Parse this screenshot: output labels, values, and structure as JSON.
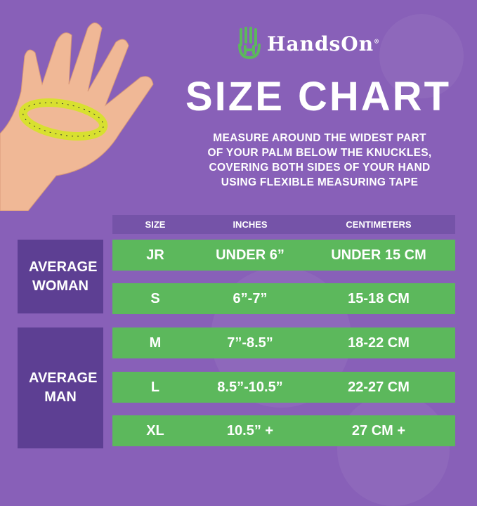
{
  "brand": {
    "name": "HandsOn",
    "registered": "®"
  },
  "title": "SIZE CHART",
  "instructions": [
    "MEASURE AROUND THE WIDEST PART",
    "OF YOUR PALM BELOW THE KNUCKLES,",
    "COVERING BOTH SIDES OF YOUR HAND",
    "USING FLEXIBLE MEASURING TAPE"
  ],
  "colors": {
    "background": "#8860b8",
    "row": "#5cb85c",
    "group": "#5d3f93",
    "header": "#7553a8",
    "logo": "#5cb85c"
  },
  "table": {
    "headers": [
      "SIZE",
      "INCHES",
      "CENTIMETERS"
    ],
    "groups": [
      {
        "label": "AVERAGE WOMAN"
      },
      {
        "label": "AVERAGE MAN"
      }
    ],
    "rows": [
      {
        "size": "JR",
        "inches": "UNDER 6”",
        "cm": "UNDER 15 CM"
      },
      {
        "size": "S",
        "inches": "6”-7”",
        "cm": "15-18 CM"
      },
      {
        "size": "M",
        "inches": "7”-8.5”",
        "cm": "18-22 CM"
      },
      {
        "size": "L",
        "inches": "8.5”-10.5”",
        "cm": "22-27 CM"
      },
      {
        "size": "XL",
        "inches": "10.5” +",
        "cm": "27 CM +"
      }
    ]
  }
}
